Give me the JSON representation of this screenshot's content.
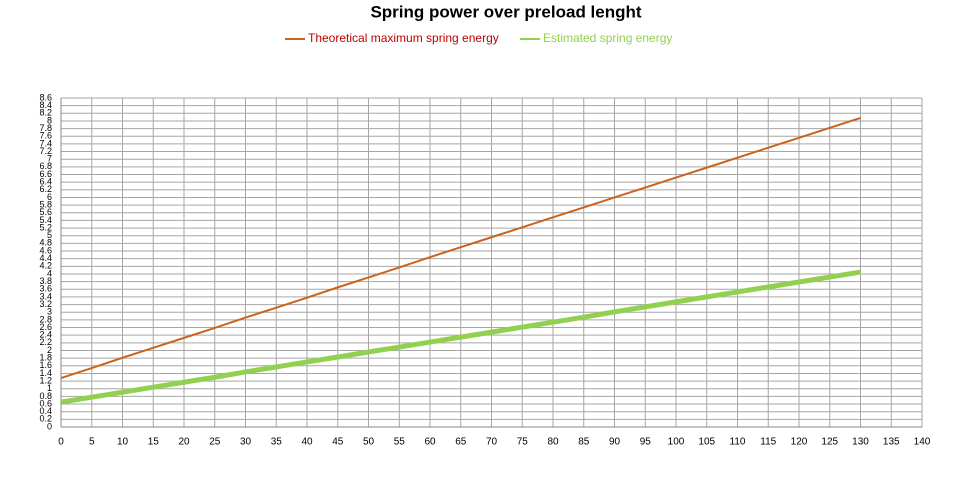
{
  "chart_data": {
    "type": "line",
    "title": "Spring power over preload lenght",
    "x": [
      0,
      5,
      10,
      15,
      20,
      25,
      30,
      35,
      40,
      45,
      50,
      55,
      60,
      65,
      70,
      75,
      80,
      85,
      90,
      95,
      100,
      105,
      110,
      115,
      120,
      125,
      130
    ],
    "series": [
      {
        "name": "Theoretical maximum spring energy",
        "color": "#c9641f",
        "width": 2,
        "values": [
          1.28,
          1.54,
          1.81,
          2.07,
          2.33,
          2.59,
          2.86,
          3.12,
          3.38,
          3.65,
          3.91,
          4.17,
          4.44,
          4.7,
          4.96,
          5.22,
          5.48,
          5.74,
          6.0,
          6.26,
          6.52,
          6.78,
          7.04,
          7.3,
          7.56,
          7.82,
          8.08
        ]
      },
      {
        "name": "Estimated spring energy",
        "color": "#92d050",
        "width": 5,
        "values": [
          0.65,
          0.78,
          0.91,
          1.04,
          1.17,
          1.3,
          1.44,
          1.57,
          1.7,
          1.83,
          1.96,
          2.09,
          2.22,
          2.35,
          2.48,
          2.61,
          2.74,
          2.87,
          3.01,
          3.14,
          3.27,
          3.4,
          3.53,
          3.66,
          3.79,
          3.92,
          4.05
        ]
      }
    ],
    "xlim": [
      0,
      140
    ],
    "xticks": [
      0,
      5,
      10,
      15,
      20,
      25,
      30,
      35,
      40,
      45,
      50,
      55,
      60,
      65,
      70,
      75,
      80,
      85,
      90,
      95,
      100,
      105,
      110,
      115,
      120,
      125,
      130,
      135,
      140
    ],
    "ylim": [
      0,
      8.6
    ],
    "yticks": [
      0,
      0.2,
      0.4,
      0.6,
      0.8,
      1,
      1.2,
      1.4,
      1.6,
      1.8,
      2,
      2.2,
      2.4,
      2.6,
      2.8,
      3,
      3.2,
      3.4,
      3.6,
      3.8,
      4,
      4.2,
      4.4,
      4.6,
      4.8,
      5,
      5.2,
      5.4,
      5.6,
      5.8,
      6,
      6.2,
      6.4,
      6.6,
      6.8,
      7,
      7.2,
      7.4,
      7.6,
      7.8,
      8,
      8.2,
      8.4,
      8.6
    ],
    "grid": true,
    "legend": "top"
  }
}
